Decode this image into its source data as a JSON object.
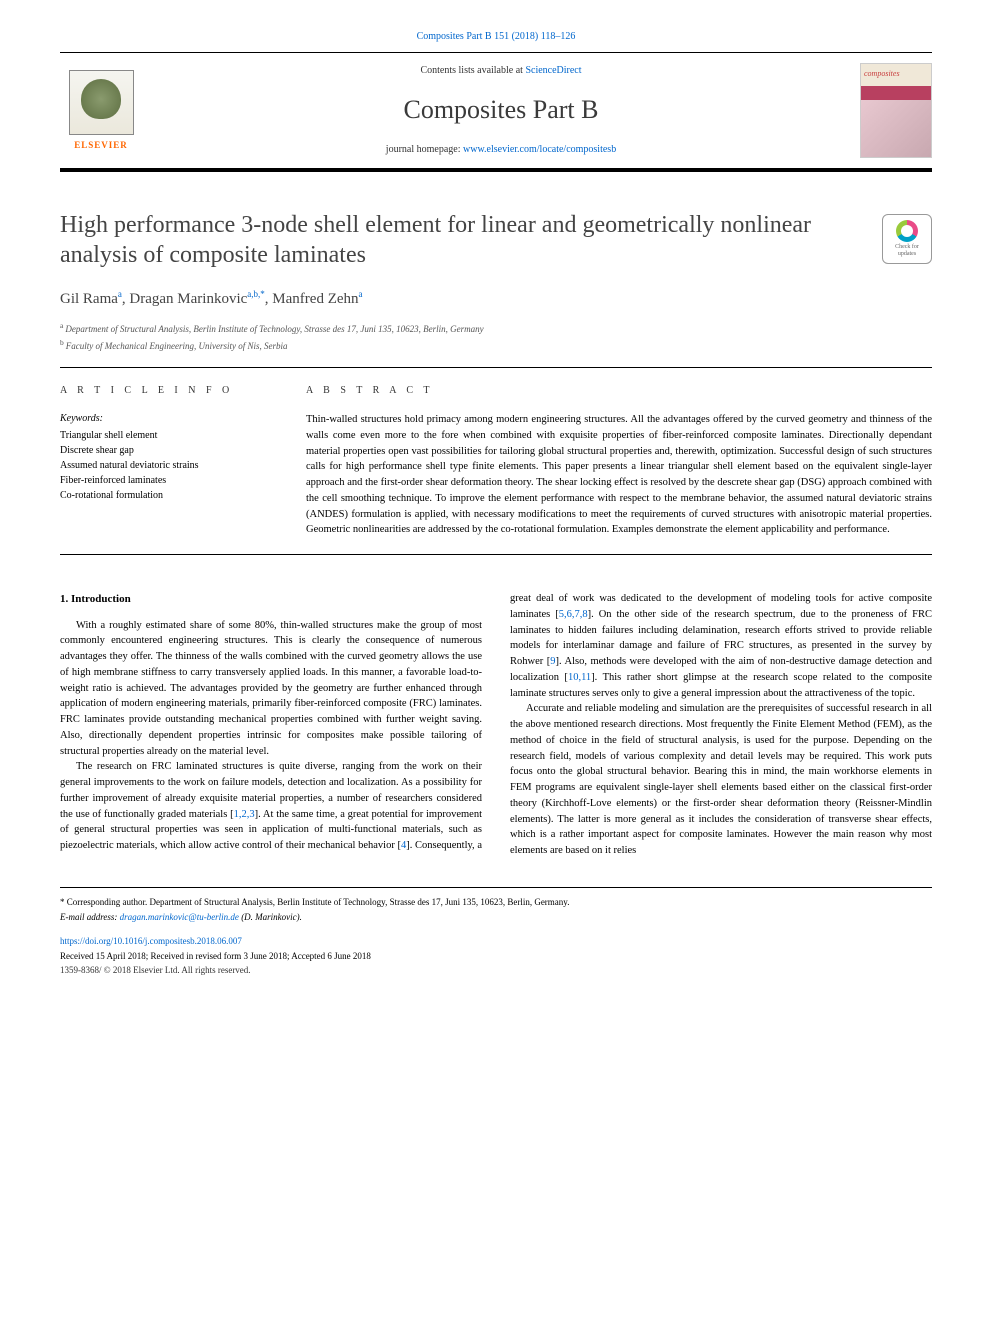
{
  "topCitation": {
    "text": "Composites Part B 151 (2018) 118–126",
    "href": "#"
  },
  "header": {
    "contentsPrefix": "Contents lists available at ",
    "contentsLink": "ScienceDirect",
    "journalTitle": "Composites Part B",
    "homepagePrefix": "journal homepage: ",
    "homepageLink": "www.elsevier.com/locate/compositesb",
    "publisherName": "ELSEVIER",
    "coverWord": "composites"
  },
  "checkUpdates": {
    "line1": "Check for",
    "line2": "updates"
  },
  "article": {
    "title": "High performance 3-node shell element for linear and geometrically nonlinear analysis of composite laminates",
    "authors": [
      {
        "name": "Gil Rama",
        "sup": "a"
      },
      {
        "name": "Dragan Marinkovic",
        "sup": "a,b,",
        "corr": "*"
      },
      {
        "name": "Manfred Zehn",
        "sup": "a"
      }
    ],
    "affiliations": [
      {
        "sup": "a",
        "text": "Department of Structural Analysis, Berlin Institute of Technology, Strasse des 17, Juni 135, 10623, Berlin, Germany"
      },
      {
        "sup": "b",
        "text": "Faculty of Mechanical Engineering, University of Nis, Serbia"
      }
    ]
  },
  "info": {
    "heading": "A R T I C L E  I N F O",
    "keywordsLabel": "Keywords:",
    "keywords": [
      "Triangular shell element",
      "Discrete shear gap",
      "Assumed natural deviatoric strains",
      "Fiber-reinforced laminates",
      "Co-rotational formulation"
    ]
  },
  "abstract": {
    "heading": "A B S T R A C T",
    "text": "Thin-walled structures hold primacy among modern engineering structures. All the advantages offered by the curved geometry and thinness of the walls come even more to the fore when combined with exquisite properties of fiber-reinforced composite laminates. Directionally dependant material properties open vast possibilities for tailoring global structural properties and, therewith, optimization. Successful design of such structures calls for high performance shell type finite elements. This paper presents a linear triangular shell element based on the equivalent single-layer approach and the first-order shear deformation theory. The shear locking effect is resolved by the descrete shear gap (DSG) approach combined with the cell smoothing technique. To improve the element performance with respect to the membrane behavior, the assumed natural deviatoric strains (ANDES) formulation is applied, with necessary modifications to meet the requirements of curved structures with anisotropic material properties. Geometric nonlinearities are addressed by the co-rotational formulation. Examples demonstrate the element applicability and performance."
  },
  "body": {
    "sectionHeading": "1. Introduction",
    "p1": "With a roughly estimated share of some 80%, thin-walled structures make the group of most commonly encountered engineering structures. This is clearly the consequence of numerous advantages they offer. The thinness of the walls combined with the curved geometry allows the use of high membrane stiffness to carry transversely applied loads. In this manner, a favorable load-to-weight ratio is achieved. The advantages provided by the geometry are further enhanced through application of modern engineering materials, primarily fiber-reinforced composite (FRC) laminates. FRC laminates provide outstanding mechanical properties combined with further weight saving. Also, directionally dependent properties intrinsic for composites make possible tailoring of structural properties already on the material level.",
    "p2a": "The research on FRC laminated structures is quite diverse, ranging from the work on their general improvements to the work on failure models, detection and localization. As a possibility for further improvement of already exquisite material properties, a number of researchers considered the use of functionally graded materials [",
    "p2refs1": "1,2,3",
    "p2b": "]. At the same time, a great potential for improvement of general structural properties was seen in application of multi-functional materials, such as piezoelectric materials, which allow active control of their mechanical behavior [",
    "p2refs2": "4",
    "p2c": "]. Consequently, a great deal of work was dedicated to the development of modeling tools for active composite laminates [",
    "p2refs3": "5,6,7,8",
    "p2d": "]. On the other side of the research spectrum, due to the proneness of FRC laminates to hidden failures including delamination, research efforts strived to provide reliable models for interlaminar damage and failure of FRC structures, as presented in the survey by Rohwer [",
    "p2refs4": "9",
    "p2e": "]. Also, methods were developed with the aim of non-destructive damage detection and localization [",
    "p2refs5": "10,11",
    "p2f": "]. This rather short glimpse at the research scope related to the composite laminate structures serves only to give a general impression about the attractiveness of the topic.",
    "p3": "Accurate and reliable modeling and simulation are the prerequisites of successful research in all the above mentioned research directions. Most frequently the Finite Element Method (FEM), as the method of choice in the field of structural analysis, is used for the purpose. Depending on the research field, models of various complexity and detail levels may be required. This work puts focus onto the global structural behavior. Bearing this in mind, the main workhorse elements in FEM programs are equivalent single-layer shell elements based either on the classical first-order theory (Kirchhoff-Love elements) or the first-order shear deformation theory (Reissner-Mindlin elements). The latter is more general as it includes the consideration of transverse shear effects, which is a rather important aspect for composite laminates. However the main reason why most elements are based on it relies"
  },
  "footer": {
    "correspLabel": "* Corresponding author. ",
    "correspText": "Department of Structural Analysis, Berlin Institute of Technology, Strasse des 17, Juni 135, 10623, Berlin, Germany.",
    "emailLabel": "E-mail address: ",
    "email": "dragan.marinkovic@tu-berlin.de",
    "emailSuffix": " (D. Marinkovic).",
    "doi": "https://doi.org/10.1016/j.compositesb.2018.06.007",
    "received": "Received 15 April 2018; Received in revised form 3 June 2018; Accepted 6 June 2018",
    "copyright": "1359-8368/ © 2018 Elsevier Ltd. All rights reserved."
  },
  "colors": {
    "link": "#0066cc",
    "titleGray": "#444444",
    "publisherOrange": "#ff6600"
  },
  "layout": {
    "pageWidth": 992,
    "pageHeight": 1323,
    "bodyColumns": 2,
    "bodyColumnGap": 28
  }
}
